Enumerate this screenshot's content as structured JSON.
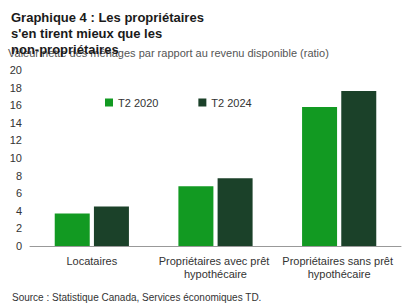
{
  "chart_data": {
    "type": "bar",
    "title": "Graphique 4 : Les propriétaires s'en tirent mieux que les non-propriétaires",
    "ylabel": "Valeur nette des ménages par rapport au revenu disponible (ratio)",
    "source": "Source : Statistique Canada, Services économiques TD.",
    "categories": [
      "Locataires",
      "Propriétaires avec prêt hypothécaire",
      "Propriétaires sans prêt hypothécaire"
    ],
    "series": [
      {
        "name": "T2 2020",
        "color": "#129a22",
        "values": [
          3.7,
          6.8,
          15.8
        ]
      },
      {
        "name": "T2 2024",
        "color": "#1b4129",
        "values": [
          4.5,
          7.7,
          17.6
        ]
      }
    ],
    "ylim": [
      0,
      20
    ],
    "yticks": [
      0,
      2,
      4,
      6,
      8,
      10,
      12,
      14,
      16,
      18,
      20
    ],
    "grid": false,
    "legend": "upper left",
    "data_labels": false
  }
}
